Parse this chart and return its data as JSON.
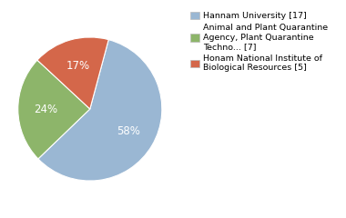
{
  "slices": [
    17,
    7,
    5
  ],
  "colors": [
    "#9ab7d3",
    "#8db56a",
    "#d4674a"
  ],
  "pct_labels": [
    "58%",
    "24%",
    "17%"
  ],
  "legend_labels": [
    "Hannam University [17]",
    "Animal and Plant Quarantine\nAgency, Plant Quarantine\nTechno... [7]",
    "Honam National Institute of\nBiological Resources [5]"
  ],
  "startangle": 75,
  "background_color": "#ffffff",
  "text_color": "#ffffff",
  "pct_fontsize": 8.5
}
